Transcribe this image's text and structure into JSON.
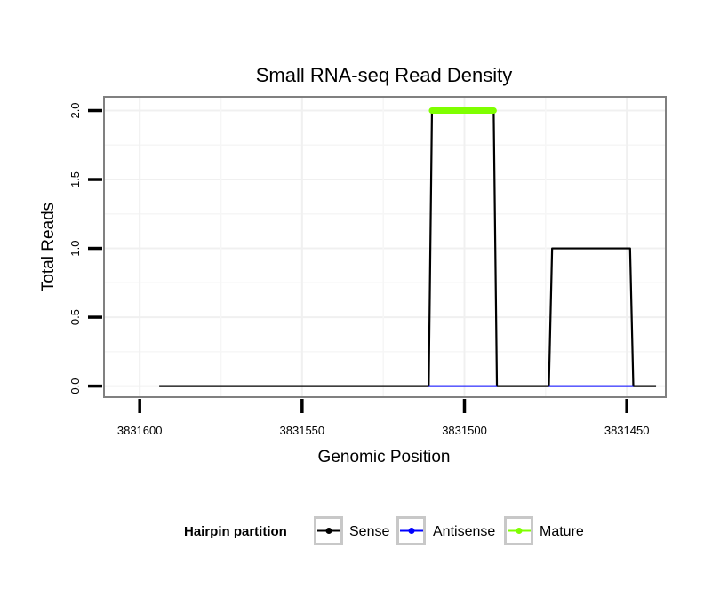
{
  "chart_data": {
    "type": "line",
    "title": "Small RNA-seq Read Density",
    "xlabel": "Genomic Position",
    "ylabel": "Total Reads",
    "x_reversed": true,
    "xlim": [
      3831611,
      3831438
    ],
    "ylim": [
      -0.08,
      2.1
    ],
    "x_ticks": [
      3831600,
      3831550,
      3831500,
      3831450
    ],
    "x_tick_labels": [
      "3831600",
      "3831550",
      "3831500",
      "3831450"
    ],
    "y_ticks": [
      0,
      0.5,
      1,
      1.5,
      2
    ],
    "y_tick_labels": [
      "0.0",
      "0.5",
      "1.0",
      "1.5",
      "2.0"
    ],
    "grid": true,
    "series": [
      {
        "name": "Sense",
        "color": "#000000",
        "x": [
          3831594,
          3831511,
          3831510,
          3831491,
          3831490,
          3831474,
          3831473,
          3831449,
          3831448,
          3831441
        ],
        "y": [
          0,
          0,
          2,
          2,
          0,
          0,
          1,
          1,
          0,
          0
        ]
      },
      {
        "name": "Antisense",
        "color": "#0000ff",
        "segments": [
          {
            "x": [
              3831511,
              3831490
            ],
            "y": [
              0,
              0
            ]
          },
          {
            "x": [
              3831474,
              3831448
            ],
            "y": [
              0,
              0
            ]
          }
        ]
      },
      {
        "name": "Mature",
        "color": "#7fff00",
        "x": [
          3831510,
          3831491
        ],
        "y": [
          2,
          2
        ]
      }
    ],
    "legend": {
      "title": "Hairpin partition",
      "position": "bottom",
      "entries": [
        "Sense",
        "Antisense",
        "Mature"
      ]
    }
  }
}
